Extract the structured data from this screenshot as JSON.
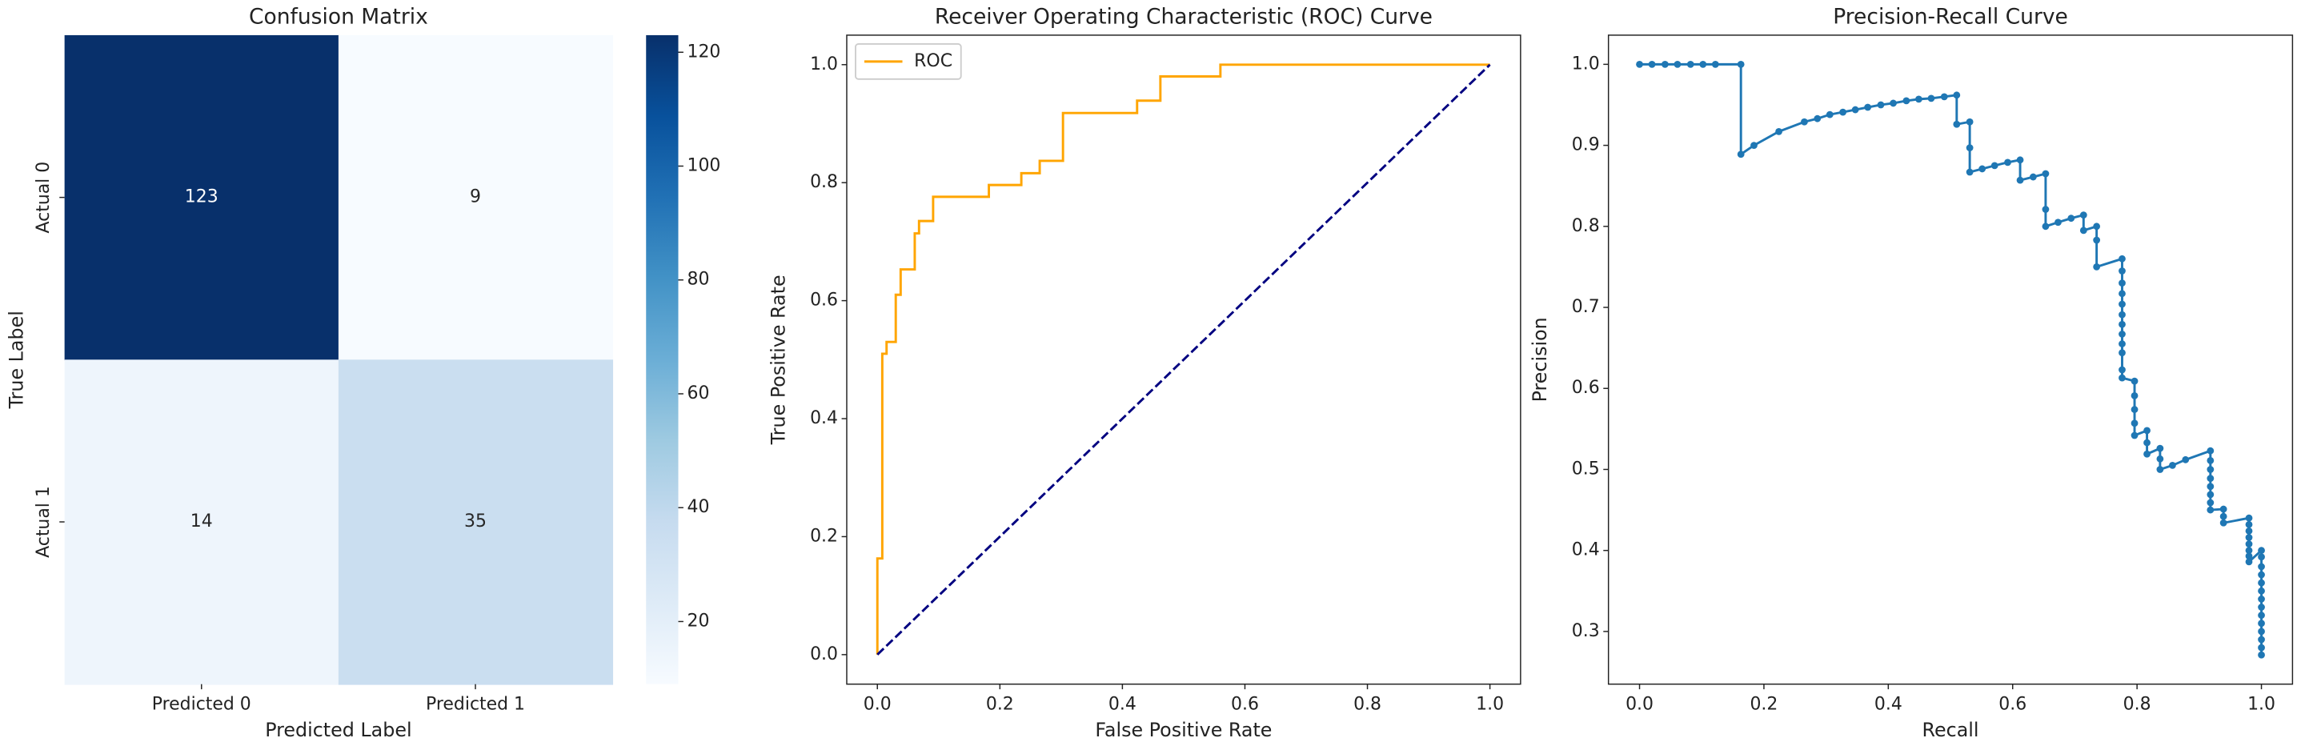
{
  "chart_data": [
    {
      "type": "heatmap",
      "title": "Confusion Matrix",
      "x_categories": [
        "Predicted 0",
        "Predicted 1"
      ],
      "y_categories": [
        "Actual 0",
        "Actual 1"
      ],
      "values": [
        [
          123,
          9
        ],
        [
          14,
          35
        ]
      ],
      "xlabel": "Predicted Label",
      "ylabel": "True Label",
      "clim": [
        9,
        123
      ],
      "cticks": [
        20,
        40,
        60,
        80,
        100,
        120
      ],
      "colormap": [
        "#f7fbff",
        "#deebf7",
        "#c6dbef",
        "#9ecae1",
        "#6baed6",
        "#4292c6",
        "#2171b5",
        "#08519c",
        "#08306b"
      ]
    },
    {
      "type": "line",
      "title": "Receiver Operating Characteristic (ROC) Curve",
      "xlabel": "False Positive Rate",
      "ylabel": "True Positive Rate",
      "xlim": [
        -0.05,
        1.05
      ],
      "ylim": [
        -0.05,
        1.05
      ],
      "xticks": [
        {
          "value": 0,
          "label": "0.0"
        },
        {
          "value": 0.2,
          "label": "0.2"
        },
        {
          "value": 0.4,
          "label": "0.4"
        },
        {
          "value": 0.6,
          "label": "0.6"
        },
        {
          "value": 0.8,
          "label": "0.8"
        },
        {
          "value": 1,
          "label": "1.0"
        }
      ],
      "yticks": [
        {
          "value": 0,
          "label": "0.0"
        },
        {
          "value": 0.2,
          "label": "0.2"
        },
        {
          "value": 0.4,
          "label": "0.4"
        },
        {
          "value": 0.6,
          "label": "0.6"
        },
        {
          "value": 0.8,
          "label": "0.8"
        },
        {
          "value": 1,
          "label": "1.0"
        }
      ],
      "legend": "upper left",
      "series": [
        {
          "name": "ROC",
          "color": "#ffa500",
          "x": [
            0,
            0,
            0.008,
            0.008,
            0.015,
            0.015,
            0.03,
            0.03,
            0.038,
            0.038,
            0.061,
            0.061,
            0.068,
            0.068,
            0.091,
            0.091,
            0.182,
            0.182,
            0.235,
            0.235,
            0.265,
            0.265,
            0.303,
            0.303,
            0.424,
            0.424,
            0.462,
            0.462,
            0.56,
            0.56,
            1.0
          ],
          "values": [
            0,
            0.163,
            0.163,
            0.51,
            0.51,
            0.53,
            0.53,
            0.61,
            0.61,
            0.653,
            0.653,
            0.714,
            0.714,
            0.735,
            0.735,
            0.776,
            0.776,
            0.796,
            0.796,
            0.816,
            0.816,
            0.837,
            0.837,
            0.918,
            0.918,
            0.939,
            0.939,
            0.98,
            0.98,
            1.0,
            1.0
          ]
        },
        {
          "color": "#000080",
          "linestyle": "dashed",
          "x": [
            0,
            1
          ],
          "values": [
            0,
            1
          ]
        }
      ]
    },
    {
      "type": "line",
      "title": "Precision-Recall Curve",
      "xlabel": "Recall",
      "ylabel": "Precision",
      "xlim": [
        -0.05,
        1.05
      ],
      "ylim": [
        0.235,
        1.036
      ],
      "xticks": [
        {
          "value": 0,
          "label": "0.0"
        },
        {
          "value": 0.2,
          "label": "0.2"
        },
        {
          "value": 0.4,
          "label": "0.4"
        },
        {
          "value": 0.6,
          "label": "0.6"
        },
        {
          "value": 0.8,
          "label": "0.8"
        },
        {
          "value": 1,
          "label": "1.0"
        }
      ],
      "yticks": [
        0.3,
        0.4,
        0.5,
        0.6,
        0.7,
        0.8,
        0.9,
        {
          "value": 1,
          "label": "1.0"
        }
      ],
      "series": [
        {
          "color": "#1f77b4",
          "marker": true,
          "x": [
            0,
            0.02,
            0.041,
            0.061,
            0.082,
            0.102,
            0.122,
            0.163,
            0.163,
            0.184,
            0.224,
            0.265,
            0.286,
            0.306,
            0.327,
            0.347,
            0.367,
            0.388,
            0.408,
            0.429,
            0.449,
            0.469,
            0.49,
            0.51,
            0.51,
            0.531,
            0.531,
            0.531,
            0.551,
            0.571,
            0.592,
            0.612,
            0.612,
            0.633,
            0.653,
            0.653,
            0.653,
            0.673,
            0.694,
            0.714,
            0.714,
            0.735,
            0.735,
            0.735,
            0.776,
            0.776,
            0.776,
            0.776,
            0.776,
            0.776,
            0.776,
            0.776,
            0.776,
            0.776,
            0.776,
            0.776,
            0.796,
            0.796,
            0.796,
            0.796,
            0.796,
            0.816,
            0.816,
            0.816,
            0.837,
            0.837,
            0.837,
            0.857,
            0.878,
            0.918,
            0.918,
            0.918,
            0.918,
            0.918,
            0.918,
            0.918,
            0.918,
            0.939,
            0.939,
            0.939,
            0.98,
            0.98,
            0.98,
            0.98,
            0.98,
            0.98,
            0.98,
            0.98,
            1,
            1,
            1,
            1,
            1,
            1,
            1,
            1,
            1,
            1,
            1,
            1,
            1,
            1
          ],
          "values": [
            1,
            1,
            1,
            1,
            1,
            1,
            1,
            1,
            0.889,
            0.9,
            0.917,
            0.929,
            0.933,
            0.938,
            0.941,
            0.944,
            0.947,
            0.95,
            0.952,
            0.955,
            0.957,
            0.958,
            0.96,
            0.962,
            0.926,
            0.929,
            0.897,
            0.867,
            0.871,
            0.875,
            0.879,
            0.882,
            0.857,
            0.861,
            0.865,
            0.821,
            0.8,
            0.805,
            0.81,
            0.814,
            0.795,
            0.8,
            0.783,
            0.75,
            0.76,
            0.745,
            0.73,
            0.717,
            0.704,
            0.691,
            0.679,
            0.667,
            0.655,
            0.644,
            0.623,
            0.613,
            0.609,
            0.591,
            0.574,
            0.557,
            0.542,
            0.548,
            0.533,
            0.519,
            0.526,
            0.513,
            0.5,
            0.505,
            0.512,
            0.523,
            0.511,
            0.5,
            0.489,
            0.479,
            0.469,
            0.459,
            0.45,
            0.451,
            0.442,
            0.434,
            0.44,
            0.432,
            0.424,
            0.416,
            0.408,
            0.4,
            0.393,
            0.386,
            0.4,
            0.392,
            0.38,
            0.37,
            0.36,
            0.35,
            0.34,
            0.33,
            0.32,
            0.31,
            0.3,
            0.29,
            0.28,
            0.271
          ]
        }
      ]
    }
  ]
}
